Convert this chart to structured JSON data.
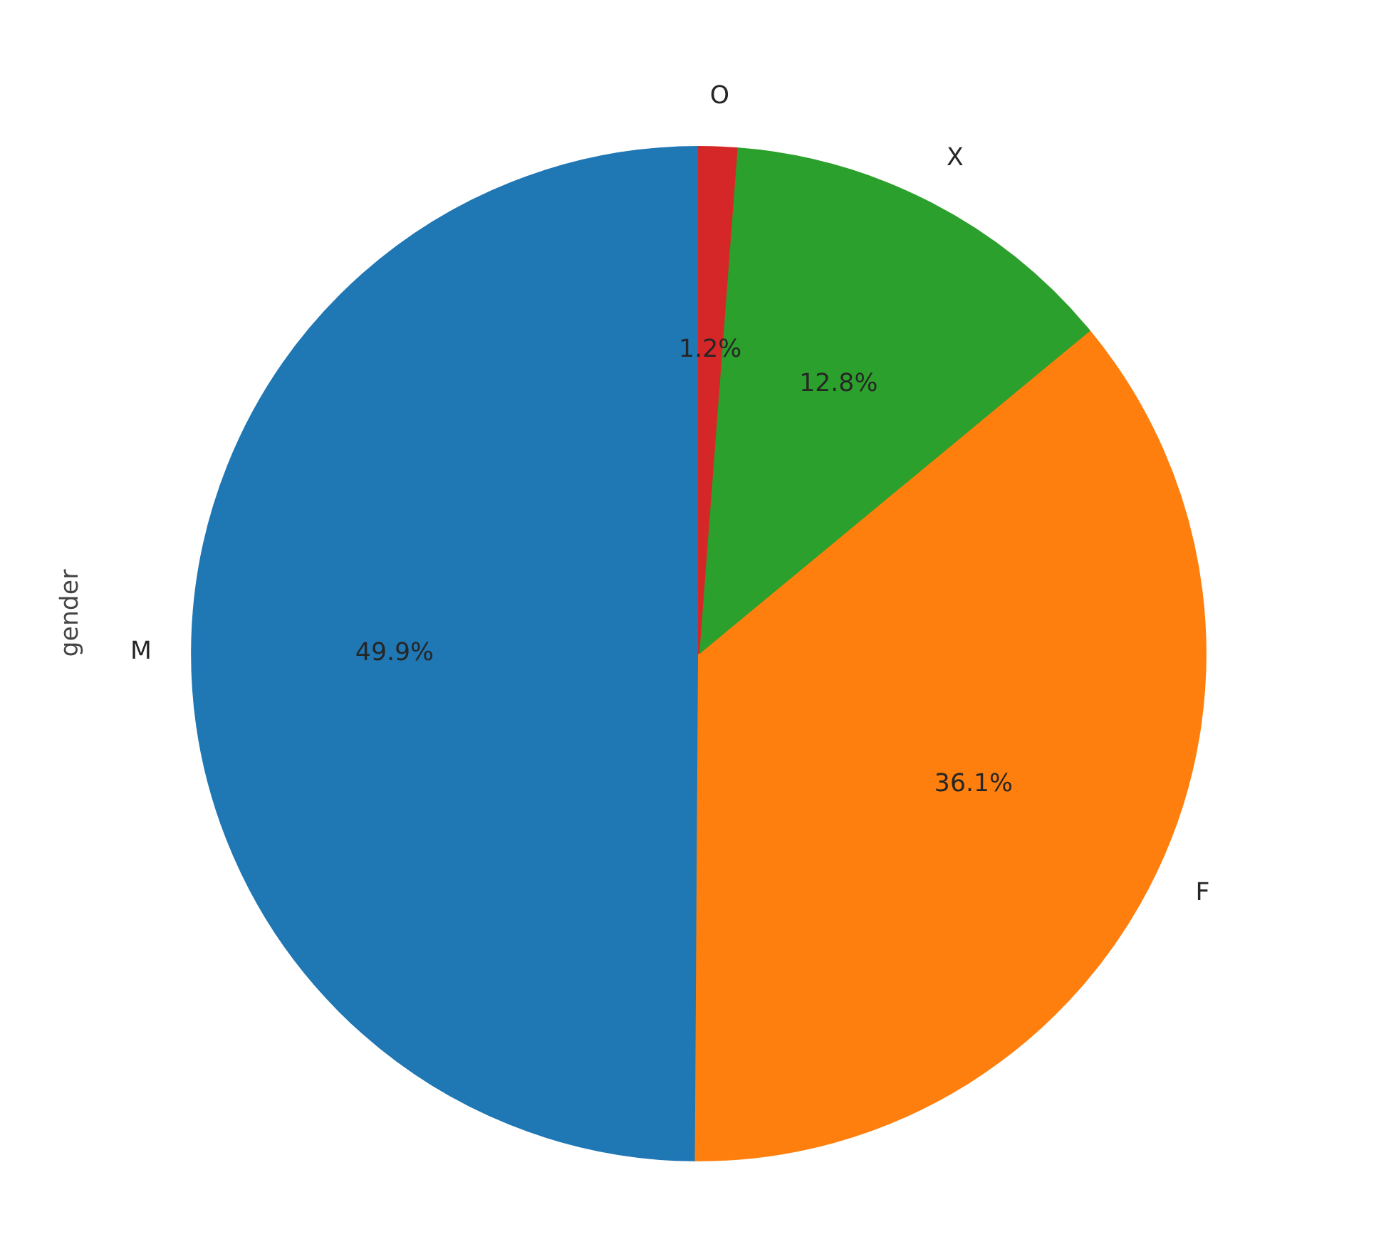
{
  "chart_data": {
    "type": "pie",
    "ylabel": "gender",
    "categories": [
      "M",
      "F",
      "X",
      "O"
    ],
    "values": [
      49.9,
      36.1,
      12.8,
      1.2
    ],
    "value_labels": [
      "49.9%",
      "36.1%",
      "12.8%",
      "1.2%"
    ],
    "colors": [
      "#1f77b4",
      "#ff7f0e",
      "#2ca02c",
      "#d62728"
    ]
  }
}
